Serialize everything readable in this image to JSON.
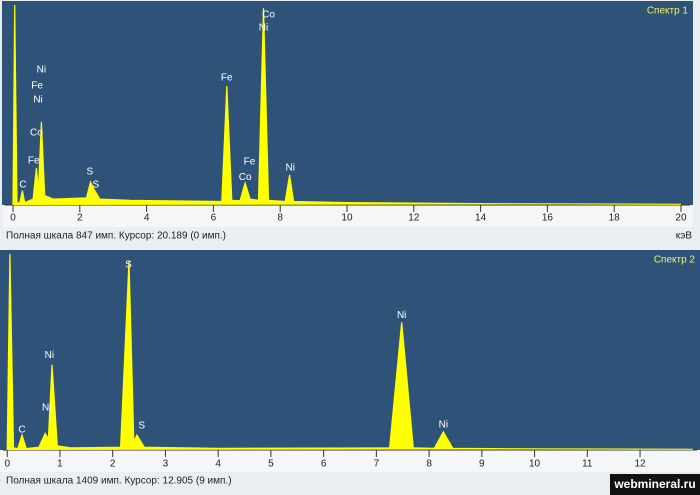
{
  "chart_data": [
    {
      "type": "line",
      "title": "Спектр 1",
      "status": "Полная шкала 847 имп. Курсор: 20.189  (0 имп.)",
      "x_label": "кэВ",
      "color": "#ffff00",
      "x": [
        0,
        0.05,
        0.12,
        0.2,
        0.28,
        0.35,
        0.6,
        0.7,
        0.76,
        0.85,
        0.95,
        1.2,
        2.2,
        2.32,
        2.45,
        2.6,
        3.5,
        6.25,
        6.4,
        6.55,
        6.8,
        6.95,
        7.1,
        7.35,
        7.5,
        7.65,
        8.15,
        8.28,
        8.4,
        10,
        14,
        20
      ],
      "values": [
        0,
        847,
        10,
        8,
        60,
        10,
        25,
        157,
        60,
        352,
        40,
        25,
        30,
        97,
        60,
        25,
        20,
        15,
        504,
        20,
        18,
        93,
        25,
        20,
        834,
        20,
        15,
        127,
        15,
        10,
        6,
        3
      ],
      "xlim": [
        -0.24,
        20.27
      ],
      "ylim": [
        0,
        847
      ],
      "xticks": [
        0,
        2,
        4,
        6,
        8,
        10,
        12,
        14,
        16,
        18,
        20
      ],
      "annotations": [
        {
          "text": "C",
          "x": 0.3,
          "y": 85
        },
        {
          "text": "Fe",
          "x": 0.62,
          "y": 186
        },
        {
          "text": "Co",
          "x": 0.7,
          "y": 305
        },
        {
          "text": "Ni",
          "x": 0.75,
          "y": 445
        },
        {
          "text": "Fe",
          "x": 0.72,
          "y": 504
        },
        {
          "text": "Ni",
          "x": 0.85,
          "y": 572
        },
        {
          "text": "S",
          "x": 2.3,
          "y": 140
        },
        {
          "text": "S",
          "x": 2.48,
          "y": 85
        },
        {
          "text": "Fe",
          "x": 6.4,
          "y": 538
        },
        {
          "text": "Fe",
          "x": 7.08,
          "y": 182
        },
        {
          "text": "Co",
          "x": 6.95,
          "y": 118
        },
        {
          "text": "Co",
          "x": 7.65,
          "y": 805
        },
        {
          "text": "Ni",
          "x": 7.5,
          "y": 750
        },
        {
          "text": "Ni",
          "x": 8.3,
          "y": 157
        }
      ]
    },
    {
      "type": "line",
      "title": "Спектр 2",
      "status": "Полная шкала 1409 имп. Курсор: 12.905  (9 имп.)",
      "color": "#ffff00",
      "x": [
        0,
        0.05,
        0.12,
        0.2,
        0.28,
        0.36,
        0.6,
        0.72,
        0.78,
        0.85,
        0.95,
        1.2,
        2.15,
        2.31,
        2.4,
        2.46,
        2.6,
        4,
        7.25,
        7.48,
        7.7,
        8.1,
        8.27,
        8.45,
        10,
        13
      ],
      "values": [
        0,
        1409,
        15,
        10,
        108,
        10,
        20,
        120,
        80,
        614,
        30,
        15,
        20,
        1358,
        60,
        108,
        20,
        12,
        15,
        918,
        15,
        12,
        130,
        12,
        8,
        5
      ],
      "xlim": [
        -0.08,
        13.08
      ],
      "ylim": [
        0,
        1409
      ],
      "xticks": [
        0,
        1,
        2,
        3,
        4,
        5,
        6,
        7,
        8,
        9,
        10,
        11,
        12
      ],
      "annotations": [
        {
          "text": "C",
          "x": 0.28,
          "y": 145
        },
        {
          "text": "Ni",
          "x": 0.8,
          "y": 680
        },
        {
          "text": "Ni",
          "x": 0.75,
          "y": 303
        },
        {
          "text": "S",
          "x": 2.3,
          "y": 1330
        },
        {
          "text": "S",
          "x": 2.55,
          "y": 173
        },
        {
          "text": "Ni",
          "x": 7.48,
          "y": 968
        },
        {
          "text": "Ni",
          "x": 8.27,
          "y": 181
        }
      ]
    }
  ],
  "watermark": "webmineral.ru"
}
